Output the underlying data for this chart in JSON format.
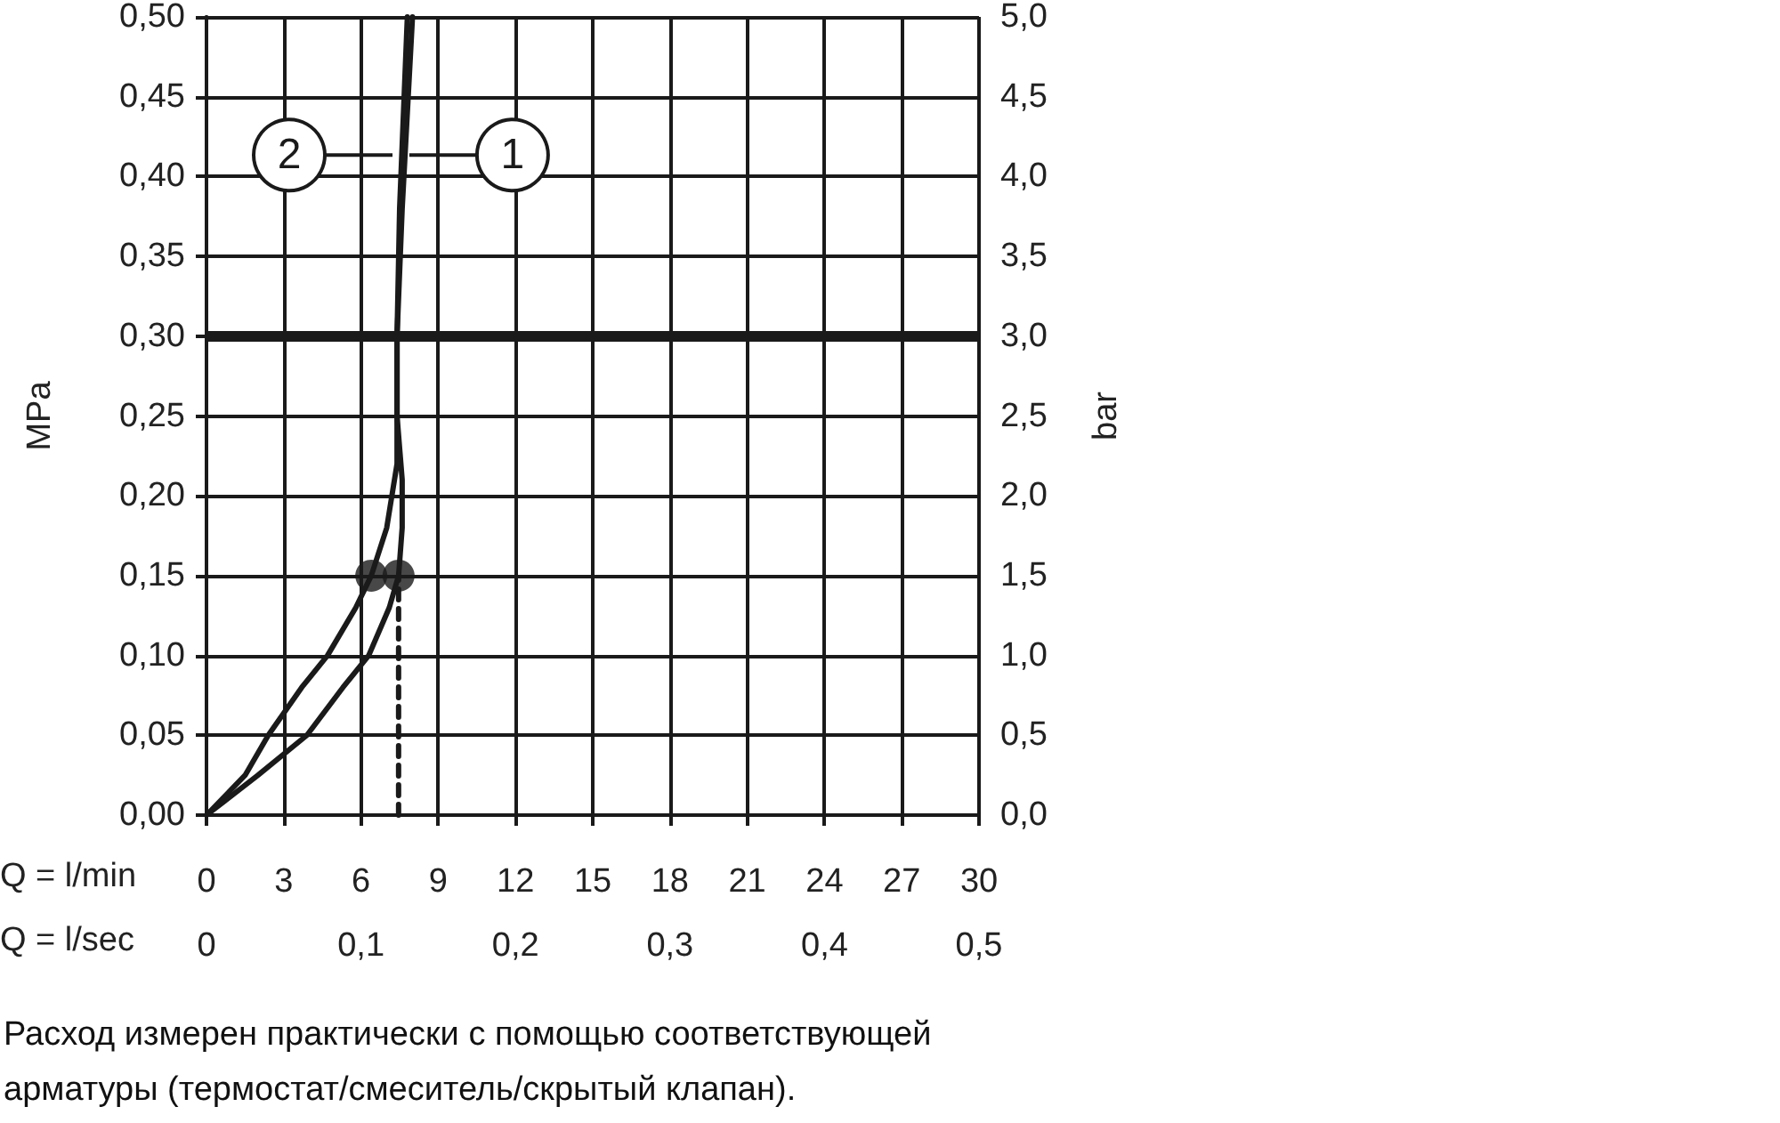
{
  "chart_data": {
    "type": "line",
    "xlabel": "Q = l/min",
    "x2label": "Q = l/sec",
    "ylabel": "MPa",
    "y2label": "bar",
    "xlim": [
      0,
      30
    ],
    "xticks": [
      0,
      3,
      6,
      9,
      12,
      15,
      18,
      21,
      24,
      27,
      30
    ],
    "x2lim": [
      0,
      0.5
    ],
    "x2ticks": [
      0,
      {
        "value": 0.1,
        "label": "0,1"
      },
      {
        "value": 0.2,
        "label": "0,2"
      },
      {
        "value": 0.3,
        "label": "0,3"
      },
      {
        "value": 0.4,
        "label": "0,4"
      },
      {
        "value": 0.5,
        "label": "0,5"
      }
    ],
    "ylim": [
      0,
      0.5
    ],
    "yticks": [
      {
        "value": 0,
        "label": "0,00"
      },
      {
        "value": 0.05,
        "label": "0,05"
      },
      {
        "value": 0.1,
        "label": "0,10"
      },
      {
        "value": 0.15,
        "label": "0,15"
      },
      {
        "value": 0.2,
        "label": "0,20"
      },
      {
        "value": 0.25,
        "label": "0,25"
      },
      {
        "value": 0.3,
        "label": "0,30"
      },
      {
        "value": 0.35,
        "label": "0,35"
      },
      {
        "value": 0.4,
        "label": "0,40"
      },
      {
        "value": 0.45,
        "label": "0,45"
      },
      {
        "value": 0.5,
        "label": "0,50"
      }
    ],
    "y2lim": [
      0,
      5
    ],
    "y2ticks": [
      {
        "value": 0,
        "label": "0,0"
      },
      {
        "value": 0.5,
        "label": "0,5"
      },
      {
        "value": 1,
        "label": "1,0"
      },
      {
        "value": 1.5,
        "label": "1,5"
      },
      {
        "value": 2,
        "label": "2,0"
      },
      {
        "value": 2.5,
        "label": "2,5"
      },
      {
        "value": 3,
        "label": "3,0"
      },
      {
        "value": 3.5,
        "label": "3,5"
      },
      {
        "value": 4,
        "label": "4,0"
      },
      {
        "value": 4.5,
        "label": "4,5"
      },
      {
        "value": 5,
        "label": "5,0"
      }
    ],
    "grid": true,
    "marker": "none",
    "line_style": "solid",
    "ref_lines": [
      {
        "axis": "y",
        "value": 0.3,
        "color": "#1a1a1a"
      }
    ],
    "series": [
      {
        "name": "1",
        "color": "#1a1a1a",
        "x": [
          0,
          2,
          3.9,
          5.3,
          6.3,
          7.1,
          7.46,
          7.6,
          7.6,
          7.4,
          7.4,
          7.6,
          8.0
        ],
        "values": [
          0,
          0.025,
          0.05,
          0.08,
          0.1,
          0.13,
          0.15,
          0.18,
          0.21,
          0.25,
          0.3,
          0.38,
          0.5
        ]
      },
      {
        "name": "2",
        "color": "#1a1a1a",
        "x": [
          0,
          1.5,
          2.4,
          3.7,
          4.7,
          5.8,
          6.4,
          7.0,
          7.4,
          7.4,
          7.5,
          7.8
        ],
        "values": [
          0,
          0.025,
          0.05,
          0.08,
          0.1,
          0.13,
          0.15,
          0.18,
          0.22,
          0.3,
          0.38,
          0.5
        ]
      },
      {
        "type": "line",
        "color": "#1a1a1a",
        "line_style": "dashed",
        "x": [
          7.46,
          7.46
        ],
        "values": [
          0,
          0.15
        ]
      },
      {
        "type": "scatter",
        "color": "#1a1a1a",
        "marker": "circle",
        "x": [
          6.4,
          7.46
        ],
        "values": [
          0.15,
          0.15
        ]
      }
    ],
    "annotations": [
      "Расход измерен практически с помощью соответствующей арматуры (термостат/смеситель/скрытый клапан)."
    ]
  }
}
